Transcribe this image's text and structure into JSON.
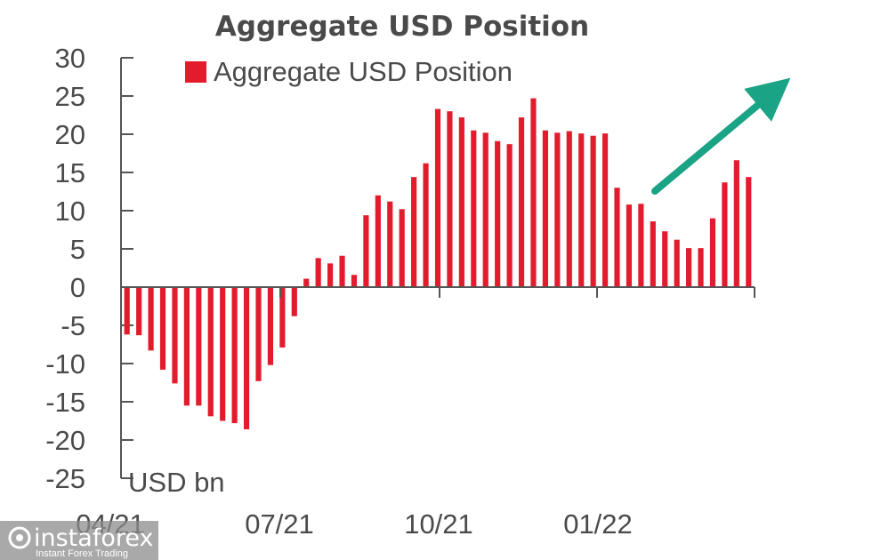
{
  "chart_data": {
    "type": "bar",
    "title": "Aggregate USD Position",
    "unit_label": "USD bn",
    "series": [
      {
        "name": "Aggregate USD Position",
        "color": "#e31c2d",
        "values": [
          -6.2,
          -6.3,
          -8.3,
          -10.8,
          -12.6,
          -15.5,
          -15.5,
          -16.9,
          -17.5,
          -17.8,
          -18.6,
          -12.3,
          -10.2,
          -7.9,
          -3.8,
          1.1,
          3.8,
          3.1,
          4.1,
          1.6,
          9.4,
          12.0,
          11.2,
          10.2,
          14.4,
          16.2,
          23.3,
          23.0,
          22.2,
          20.5,
          20.2,
          19.1,
          18.7,
          22.2,
          24.7,
          20.5,
          20.2,
          20.4,
          20.1,
          19.8,
          20.1,
          13.0,
          10.8,
          10.9,
          8.6,
          7.3,
          6.2,
          5.1,
          5.1,
          9.0,
          13.7,
          16.6,
          14.4
        ]
      }
    ],
    "x_ticks": [
      "04/21",
      "07/21",
      "10/21",
      "01/22"
    ],
    "y_ticks": [
      "30",
      "25",
      "20",
      "15",
      "10",
      "5",
      "0",
      "-5",
      "-10",
      "-15",
      "-20",
      "-25"
    ],
    "ylim": [
      -25,
      30
    ],
    "legend_position": "top",
    "grid": false,
    "annotation": {
      "type": "arrow",
      "color": "#1aa384",
      "meaning": "upward trend"
    }
  },
  "watermark": {
    "brand": "instaforex",
    "tagline": "Instant Forex Trading"
  }
}
